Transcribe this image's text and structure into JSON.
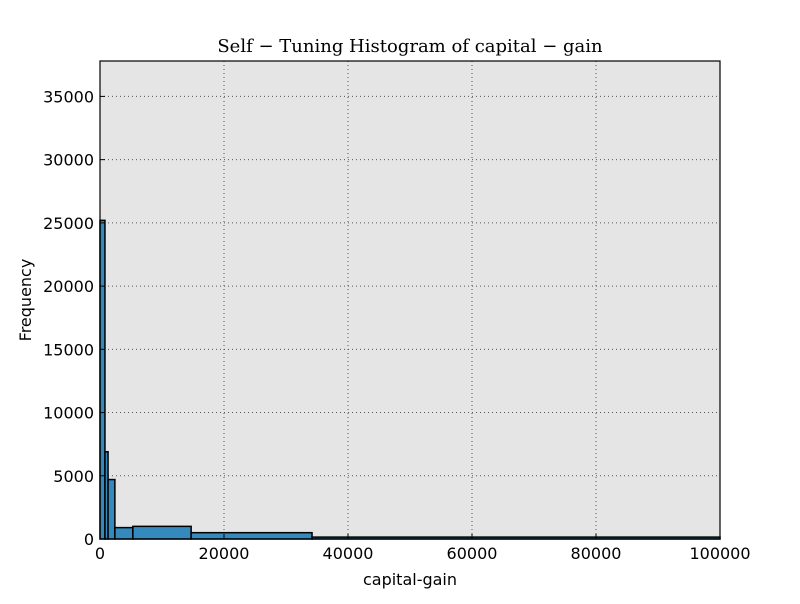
{
  "chart_data": {
    "type": "histogram",
    "title": "Self − Tuning Histogram of capital − gain",
    "x_label": "capital-gain",
    "y_label": "Frequency",
    "bins": [
      0,
      800,
      1300,
      2400,
      5300,
      14700,
      34200,
      100000
    ],
    "values": [
      25200,
      6900,
      4700,
      900,
      1000,
      500,
      150
    ],
    "color": "#348abd",
    "xlim": [
      0,
      100000
    ],
    "xticks": [
      0,
      20000,
      40000,
      60000,
      80000,
      100000
    ],
    "ylim": [
      0,
      37800
    ],
    "yticks": [
      0,
      5000,
      10000,
      15000,
      20000,
      25000,
      30000,
      35000
    ],
    "grid": true
  }
}
